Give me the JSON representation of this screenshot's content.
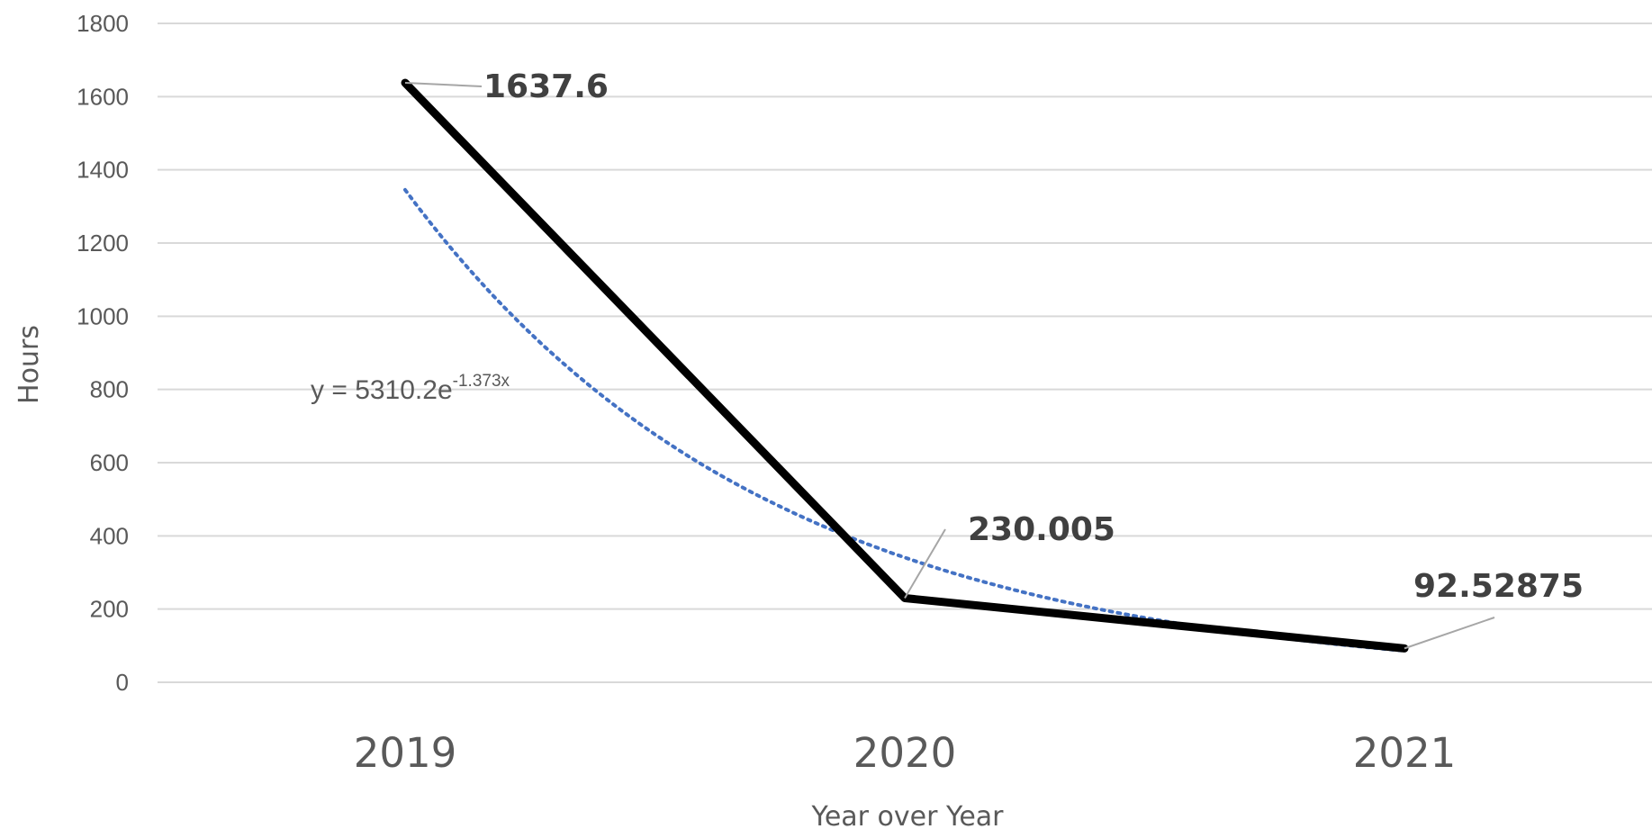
{
  "chart_data": {
    "type": "line",
    "title": "",
    "xlabel": "Year over Year",
    "ylabel": "Hours",
    "categories": [
      "2019",
      "2020",
      "2021"
    ],
    "series": [
      {
        "values": [
          1637.6,
          230.005,
          92.52875
        ],
        "color": "#000000"
      }
    ],
    "data_labels": [
      "1637.6",
      "230.005",
      "92.52875"
    ],
    "trendline": {
      "type": "exponential",
      "equation_prefix": "y = 5310.2e",
      "equation_exponent": "-1.373x",
      "a": 5310.2,
      "b": -1.373,
      "color": "#4472C4",
      "style": "dotted"
    },
    "ylim": [
      0,
      1800
    ],
    "yticks": [
      0,
      200,
      400,
      600,
      800,
      1000,
      1200,
      1400,
      1600,
      1800
    ],
    "grid": true,
    "legend": "none"
  }
}
